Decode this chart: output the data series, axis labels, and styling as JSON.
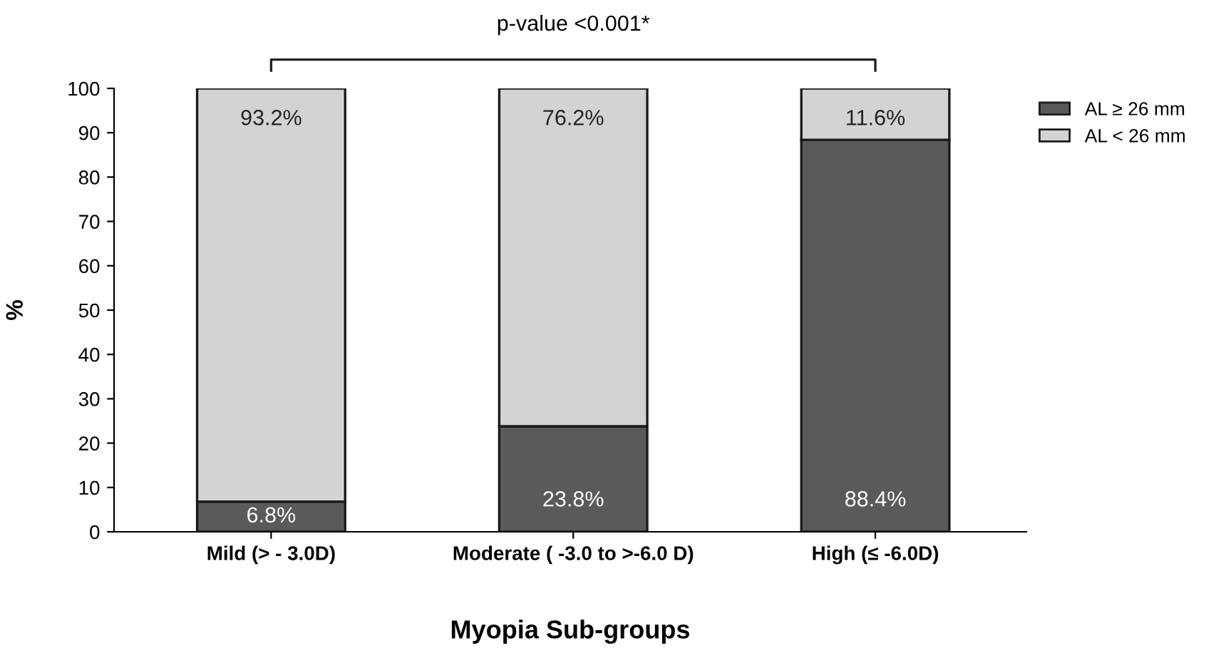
{
  "chart_data": {
    "type": "bar",
    "stacked": true,
    "xlabel": "Myopia Sub-groups",
    "ylabel": "%",
    "categories": [
      "Mild (> - 3.0D)",
      "Moderate ( -3.0 to >-6.0 D)",
      "High (≤ -6.0D)"
    ],
    "series": [
      {
        "name": "AL ≥ 26 mm",
        "color": "#5a5a5a",
        "values": [
          6.8,
          23.8,
          88.4
        ],
        "value_labels": [
          "6.8%",
          "23.8%",
          "88.4%"
        ]
      },
      {
        "name": "AL < 26 mm",
        "color": "#d3d3d3",
        "values": [
          93.2,
          76.2,
          11.6
        ],
        "value_labels": [
          "93.2%",
          "76.2%",
          "11.6%"
        ]
      }
    ],
    "ylim": [
      0,
      100
    ],
    "yticks": [
      0,
      10,
      20,
      30,
      40,
      50,
      60,
      70,
      80,
      90,
      100
    ],
    "grid": false,
    "legend": "top right",
    "annotations": [
      "p-value <0.001*"
    ]
  }
}
